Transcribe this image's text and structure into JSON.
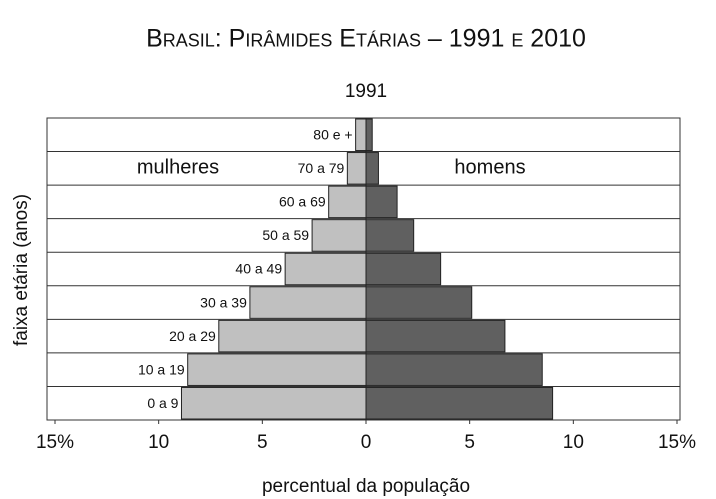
{
  "chart_data": {
    "type": "pyramid",
    "title": "Brasil: Pirâmides Etárias – 1991 e 2010",
    "subtitle": "1991",
    "x_label": "percentual da população",
    "y_label": "faixa etária (anos)",
    "categories": [
      "0 a 9",
      "10 a 19",
      "20 a 29",
      "30 a 39",
      "40 a 49",
      "50 a 59",
      "60 a 69",
      "70 a 79",
      "80 e +"
    ],
    "series": [
      {
        "name": "mulheres",
        "color": "#c0c0c0",
        "direction": "left",
        "values": [
          8.9,
          8.6,
          7.1,
          5.6,
          3.9,
          2.6,
          1.8,
          0.9,
          0.5
        ]
      },
      {
        "name": "homens",
        "color": "#606060",
        "direction": "right",
        "values": [
          9.0,
          8.5,
          6.7,
          5.1,
          3.6,
          2.3,
          1.5,
          0.6,
          0.3
        ]
      }
    ],
    "xlim": [
      -15,
      15
    ],
    "xticks": [
      {
        "value": -15,
        "label": "15%"
      },
      {
        "value": -10,
        "label": "10"
      },
      {
        "value": -5,
        "label": "5"
      },
      0,
      5,
      10,
      {
        "value": 15,
        "label": "15%"
      }
    ]
  }
}
